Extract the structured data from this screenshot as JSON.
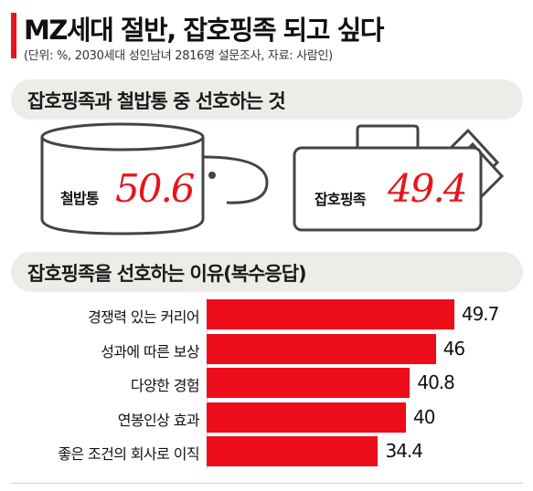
{
  "header": {
    "title": "MZ세대 절반, 잡호핑족 되고 싶다",
    "subtitle": "(단위: %, 2030세대 성인남녀 2816명 설문조사, 자료: 사람인)",
    "accent_color": "#e8141b"
  },
  "section1": {
    "heading": "잡호핑족과 철밥통 중 선호하는 것",
    "items": [
      {
        "label": "철밥통",
        "value": "50.6",
        "icon": "rice-bowl-icon"
      },
      {
        "label": "잡호핑족",
        "value": "49.4",
        "icon": "briefcase-icon"
      }
    ]
  },
  "section2": {
    "heading": "잡호핑족을 선호하는 이유(복수응답)"
  },
  "chart_data": [
    {
      "type": "bar",
      "title": "잡호핑족과 철밥통 중 선호하는 것",
      "categories": [
        "철밥통",
        "잡호핑족"
      ],
      "values": [
        50.6,
        49.4
      ],
      "unit": "%"
    },
    {
      "type": "bar",
      "orientation": "horizontal",
      "title": "잡호핑족을 선호하는 이유(복수응답)",
      "categories": [
        "경쟁력 있는 커리어",
        "성과에 따른 보상",
        "다양한 경험",
        "연봉인상 효과",
        "좋은 조건의 회사로 이직"
      ],
      "values": [
        49.7,
        46,
        40.8,
        40,
        34.4
      ],
      "value_labels": [
        "49.7",
        "46",
        "40.8",
        "40",
        "34.4"
      ],
      "bar_color": "#ed0c1a",
      "unit": "%"
    }
  ]
}
